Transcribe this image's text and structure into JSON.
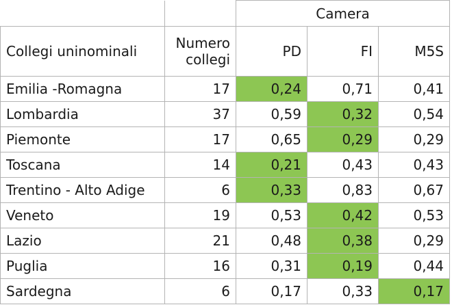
{
  "table": {
    "group_header": "Camera",
    "columns": {
      "region": "Collegi uninominali",
      "seats_line1": "Numero",
      "seats_line2": "collegi",
      "pd": "PD",
      "fi": "FI",
      "m5s": "M5S"
    },
    "highlight_color": "#8dc653",
    "rows": [
      {
        "region": "Emilia -Romagna",
        "seats": "17",
        "pd": "0,24",
        "fi": "0,71",
        "m5s": "0,41",
        "highlight": "pd"
      },
      {
        "region": "Lombardia",
        "seats": "37",
        "pd": "0,59",
        "fi": "0,32",
        "m5s": "0,54",
        "highlight": "fi"
      },
      {
        "region": "Piemonte",
        "seats": "17",
        "pd": "0,65",
        "fi": "0,29",
        "m5s": "0,29",
        "highlight": "fi"
      },
      {
        "region": "Toscana",
        "seats": "14",
        "pd": "0,21",
        "fi": "0,43",
        "m5s": "0,43",
        "highlight": "pd"
      },
      {
        "region": "Trentino - Alto Adige",
        "seats": "6",
        "pd": "0,33",
        "fi": "0,83",
        "m5s": "0,67",
        "highlight": "pd"
      },
      {
        "region": "Veneto",
        "seats": "19",
        "pd": "0,53",
        "fi": "0,42",
        "m5s": "0,53",
        "highlight": "fi"
      },
      {
        "region": "Lazio",
        "seats": "21",
        "pd": "0,48",
        "fi": "0,38",
        "m5s": "0,29",
        "highlight": "fi"
      },
      {
        "region": "Puglia",
        "seats": "16",
        "pd": "0,31",
        "fi": "0,19",
        "m5s": "0,44",
        "highlight": "fi"
      },
      {
        "region": "Sardegna",
        "seats": "6",
        "pd": "0,17",
        "fi": "0,33",
        "m5s": "0,17",
        "highlight": "m5s"
      }
    ]
  }
}
